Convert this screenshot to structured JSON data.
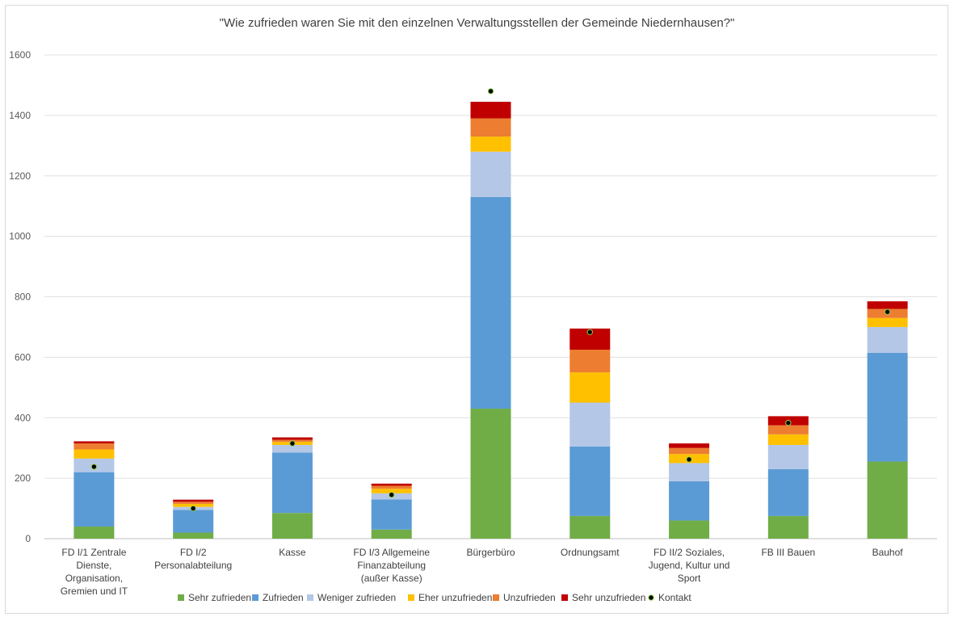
{
  "chart_data": {
    "type": "bar",
    "stacked": true,
    "title": "\"Wie zufrieden waren Sie mit den einzelnen Verwaltungsstellen der Gemeinde Niedernhausen?\"",
    "xlabel": "",
    "ylabel": "",
    "ylim": [
      0,
      1600
    ],
    "yticks": [
      0,
      200,
      400,
      600,
      800,
      1000,
      1200,
      1400,
      1600
    ],
    "grid": true,
    "legend_position": "bottom",
    "categories": [
      [
        "FD I/1 Zentrale",
        "Dienste,",
        "Organisation,",
        "Gremien und IT"
      ],
      [
        "FD I/2",
        "Personalabteilung"
      ],
      [
        "Kasse"
      ],
      [
        "FD I/3 Allgemeine",
        "Finanzabteilung",
        "(außer Kasse)"
      ],
      [
        "Bürgerbüro"
      ],
      [
        "Ordnungsamt"
      ],
      [
        "FD II/2 Soziales,",
        "Jugend, Kultur und",
        "Sport"
      ],
      [
        "FB III Bauen"
      ],
      [
        "Bauhof"
      ]
    ],
    "series": [
      {
        "name": "Sehr zufrieden",
        "color": "#70ad47",
        "values": [
          40,
          20,
          85,
          30,
          430,
          75,
          60,
          75,
          255
        ]
      },
      {
        "name": "Zufrieden",
        "color": "#5b9bd5",
        "values": [
          180,
          75,
          200,
          100,
          700,
          230,
          130,
          155,
          360
        ]
      },
      {
        "name": "Weniger zufrieden",
        "color": "#b4c7e7",
        "values": [
          45,
          10,
          25,
          20,
          150,
          145,
          60,
          80,
          85
        ]
      },
      {
        "name": "Eher unzufrieden",
        "color": "#ffc000",
        "values": [
          30,
          10,
          10,
          15,
          50,
          100,
          30,
          35,
          30
        ]
      },
      {
        "name": "Unzufrieden",
        "color": "#ed7d31",
        "values": [
          20,
          7,
          7,
          10,
          60,
          75,
          20,
          30,
          30
        ]
      },
      {
        "name": "Sehr unzufrieden",
        "color": "#c00000",
        "values": [
          7,
          7,
          8,
          7,
          55,
          70,
          15,
          30,
          25
        ]
      }
    ],
    "markers": {
      "name": "Kontakt",
      "values": [
        238,
        100,
        315,
        145,
        1480,
        683,
        262,
        383,
        750
      ]
    }
  }
}
